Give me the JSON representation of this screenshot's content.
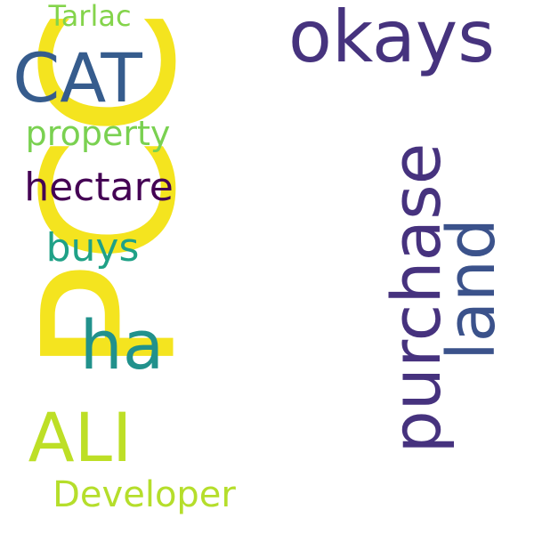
{
  "words": [
    {
      "id": "pcc",
      "text": "PCC",
      "color": "#f4e41f"
    },
    {
      "id": "okays",
      "text": "okays",
      "color": "#46337e"
    },
    {
      "id": "cat",
      "text": "CAT",
      "color": "#365c8d"
    },
    {
      "id": "purchase",
      "text": "purchase",
      "color": "#46327e"
    },
    {
      "id": "land",
      "text": "land",
      "color": "#3b528b"
    },
    {
      "id": "ha",
      "text": "ha",
      "color": "#21918c"
    },
    {
      "id": "ali",
      "text": "ALI",
      "color": "#bddf26"
    },
    {
      "id": "hectare",
      "text": "hectare",
      "color": "#440154"
    },
    {
      "id": "buys",
      "text": "buys",
      "color": "#1fa187"
    },
    {
      "id": "property",
      "text": "property",
      "color": "#7ad151"
    },
    {
      "id": "developer",
      "text": "Developer",
      "color": "#b5de2b"
    },
    {
      "id": "tarlac",
      "text": "Tarlac",
      "color": "#84d44b"
    }
  ]
}
